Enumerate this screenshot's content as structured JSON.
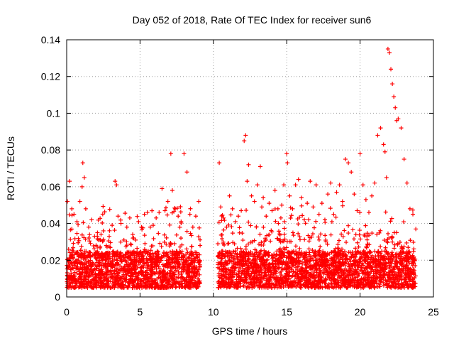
{
  "chart_data": {
    "type": "scatter",
    "title": "Day 052 of 2018, Rate Of TEC Index for receiver sun6",
    "xlabel": "GPS time / hours",
    "ylabel": "ROTI / TECUs",
    "xlim": [
      0,
      25
    ],
    "ylim": [
      0,
      0.14
    ],
    "xticks": [
      0,
      5,
      10,
      15,
      20,
      25
    ],
    "xtick_labels": [
      "0",
      "5",
      "10",
      "15",
      "20",
      "25"
    ],
    "yticks": [
      0,
      0.02,
      0.04,
      0.06,
      0.08,
      0.1,
      0.12,
      0.14
    ],
    "ytick_labels": [
      "0",
      "0.02",
      "0.04",
      "0.06",
      "0.08",
      "0.1",
      "0.12",
      "0.14"
    ],
    "grid": true,
    "marker": "+",
    "color": "#ff0000",
    "series": [
      {
        "name": "ROTI",
        "x": [
          0.05,
          0.2,
          0.35,
          0.5,
          0.7,
          0.9,
          1.05,
          1.1,
          1.2,
          1.3,
          1.5,
          1.7,
          1.9,
          2.1,
          2.3,
          2.5,
          2.7,
          2.9,
          3.1,
          3.3,
          3.4,
          3.5,
          3.7,
          3.9,
          4.1,
          4.3,
          4.5,
          4.7,
          4.9,
          5.1,
          5.3,
          5.5,
          5.7,
          5.9,
          6.1,
          6.3,
          6.5,
          6.7,
          6.9,
          7.1,
          7.2,
          7.4,
          7.6,
          7.8,
          8.0,
          8.2,
          8.4,
          8.6,
          8.8,
          9.0,
          10.4,
          10.5,
          10.7,
          10.9,
          11.1,
          11.3,
          11.5,
          11.7,
          11.9,
          12.1,
          12.2,
          12.3,
          12.4,
          12.6,
          12.8,
          13.0,
          13.2,
          13.4,
          13.6,
          13.8,
          14.0,
          14.2,
          14.4,
          14.6,
          14.8,
          15.0,
          15.05,
          15.2,
          15.4,
          15.6,
          15.8,
          16.0,
          16.2,
          16.4,
          16.6,
          16.8,
          17.0,
          17.2,
          17.4,
          17.6,
          17.8,
          18.0,
          18.2,
          18.4,
          18.6,
          18.8,
          19.0,
          19.2,
          19.4,
          19.6,
          19.8,
          20.0,
          20.2,
          20.4,
          20.6,
          20.8,
          21.0,
          21.2,
          21.4,
          21.6,
          21.7,
          21.8,
          21.9,
          22.0,
          22.1,
          22.2,
          22.3,
          22.4,
          22.5,
          22.6,
          22.8,
          23.0,
          23.2,
          23.4,
          23.6,
          23.8
        ],
        "y": [
          0.052,
          0.063,
          0.048,
          0.045,
          0.041,
          0.052,
          0.06,
          0.073,
          0.065,
          0.048,
          0.038,
          0.042,
          0.033,
          0.035,
          0.031,
          0.036,
          0.028,
          0.033,
          0.039,
          0.063,
          0.061,
          0.044,
          0.04,
          0.031,
          0.038,
          0.043,
          0.034,
          0.031,
          0.041,
          0.038,
          0.045,
          0.046,
          0.038,
          0.039,
          0.043,
          0.046,
          0.059,
          0.047,
          0.052,
          0.078,
          0.058,
          0.048,
          0.044,
          0.041,
          0.078,
          0.068,
          0.045,
          0.038,
          0.044,
          0.052,
          0.073,
          0.049,
          0.043,
          0.038,
          0.055,
          0.048,
          0.041,
          0.044,
          0.047,
          0.085,
          0.088,
          0.063,
          0.072,
          0.055,
          0.052,
          0.061,
          0.071,
          0.054,
          0.044,
          0.051,
          0.047,
          0.058,
          0.048,
          0.043,
          0.061,
          0.078,
          0.073,
          0.055,
          0.048,
          0.061,
          0.064,
          0.054,
          0.042,
          0.051,
          0.063,
          0.049,
          0.061,
          0.045,
          0.051,
          0.042,
          0.056,
          0.062,
          0.045,
          0.057,
          0.061,
          0.052,
          0.075,
          0.073,
          0.068,
          0.056,
          0.047,
          0.078,
          0.061,
          0.053,
          0.046,
          0.055,
          0.062,
          0.088,
          0.092,
          0.083,
          0.079,
          0.065,
          0.135,
          0.133,
          0.124,
          0.116,
          0.109,
          0.103,
          0.096,
          0.097,
          0.092,
          0.075,
          0.062,
          0.048,
          0.045,
          0.037
        ]
      }
    ],
    "data_gap": [
      9.1,
      10.3
    ],
    "baseline_band": [
      0.005,
      0.025
    ]
  }
}
